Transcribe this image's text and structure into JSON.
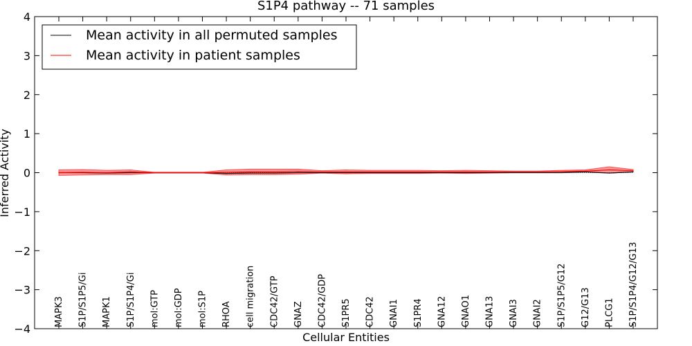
{
  "chart_data": {
    "type": "line",
    "title": "S1P4 pathway -- 71 samples",
    "xlabel": "Cellular Entities",
    "ylabel": "Inferred Activity",
    "ylim": [
      -4,
      4
    ],
    "yticks": [
      -4,
      -3,
      -2,
      -1,
      0,
      1,
      2,
      3,
      4
    ],
    "ytick_labels": [
      "−4",
      "−3",
      "−2",
      "−1",
      "0",
      "1",
      "2",
      "3",
      "4"
    ],
    "legend_position": "top-left",
    "categories": [
      "MAPK3",
      "S1P/S1P5/Gi",
      "MAPK1",
      "S1P/S1P4/Gi",
      "mol:GTP",
      "mol:GDP",
      "mol:S1P",
      "RHOA",
      "cell migration",
      "CDC42/GTP",
      "GNAZ",
      "CDC42/GDP",
      "S1PR5",
      "CDC42",
      "GNAI1",
      "S1PR4",
      "GNA12",
      "GNAO1",
      "GNA13",
      "GNAI3",
      "GNAI2",
      "S1P/S1P5/G12",
      "G12/G13",
      "PLCG1",
      "S1P/S1P4/G12/G13"
    ],
    "series": [
      {
        "name": "Mean activity in all permuted samples",
        "color": "#000000",
        "values": [
          0.0,
          0.0,
          -0.01,
          0.0,
          0.0,
          0.0,
          0.0,
          -0.02,
          -0.01,
          -0.01,
          0.0,
          0.0,
          0.0,
          0.0,
          0.0,
          0.0,
          0.0,
          0.0,
          0.0,
          0.0,
          0.0,
          0.0,
          0.02,
          -0.01,
          0.02
        ]
      },
      {
        "name": "Mean activity in patient samples",
        "color": "#ff0000",
        "values": [
          0.0,
          0.01,
          0.0,
          0.02,
          0.0,
          0.0,
          0.0,
          0.01,
          0.02,
          0.02,
          0.03,
          0.02,
          0.02,
          0.02,
          0.02,
          0.02,
          0.02,
          0.02,
          0.02,
          0.02,
          0.02,
          0.03,
          0.04,
          0.07,
          0.05
        ],
        "band_upper": [
          0.07,
          0.08,
          0.06,
          0.07,
          0.01,
          0.01,
          0.01,
          0.07,
          0.09,
          0.09,
          0.09,
          0.05,
          0.07,
          0.06,
          0.06,
          0.06,
          0.05,
          0.06,
          0.05,
          0.04,
          0.04,
          0.06,
          0.07,
          0.15,
          0.08
        ],
        "band_lower": [
          -0.07,
          -0.06,
          -0.05,
          -0.05,
          -0.01,
          -0.01,
          -0.01,
          -0.06,
          -0.05,
          -0.05,
          -0.04,
          -0.01,
          -0.03,
          -0.02,
          -0.02,
          -0.02,
          -0.01,
          -0.02,
          -0.01,
          0.0,
          0.0,
          0.0,
          0.01,
          -0.01,
          0.02
        ],
        "band_color": "#ff0000"
      }
    ]
  }
}
